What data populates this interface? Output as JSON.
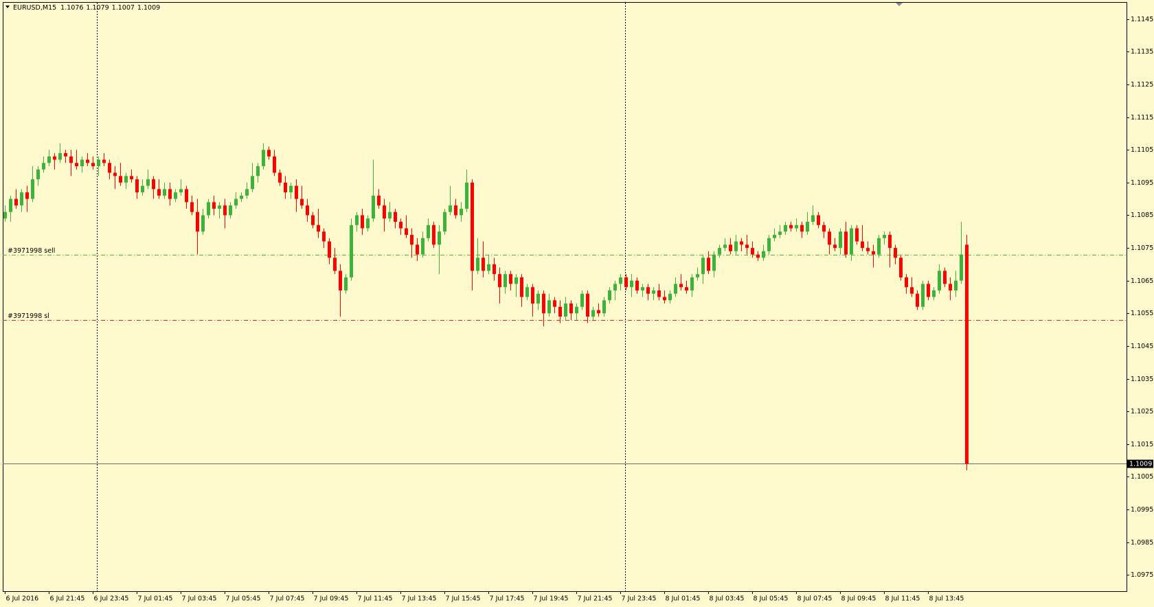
{
  "chart_data": {
    "type": "candlestick",
    "title": "EURUSD,M15",
    "up_color": "#3cb43c",
    "down_color": "#ff0000",
    "ylim": [
      1.097,
      1.115
    ],
    "yticks": [
      1.0975,
      1.0985,
      1.0995,
      1.1005,
      1.1015,
      1.1025,
      1.1035,
      1.1045,
      1.1055,
      1.1065,
      1.1075,
      1.1085,
      1.1095,
      1.1105,
      1.1115,
      1.1125,
      1.1135,
      1.1145
    ],
    "order_lines": [
      {
        "label": "#3971998 sell",
        "value": 1.1073,
        "color": "#32c832"
      },
      {
        "label": "#3971998 sl",
        "value": 1.1053,
        "color": "#e02828"
      }
    ],
    "categories": [
      "6 Jul 2016",
      null,
      null,
      null,
      null,
      null,
      null,
      null,
      "6 Jul 21:45",
      null,
      null,
      null,
      null,
      null,
      null,
      null,
      "6 Jul 23:45",
      null,
      null,
      null,
      null,
      null,
      null,
      null,
      "7 Jul 01:45",
      null,
      null,
      null,
      null,
      null,
      null,
      null,
      "7 Jul 03:45",
      null,
      null,
      null,
      null,
      null,
      null,
      null,
      "7 Jul 05:45",
      null,
      null,
      null,
      null,
      null,
      null,
      null,
      "7 Jul 07:45",
      null,
      null,
      null,
      null,
      null,
      null,
      null,
      "7 Jul 09:45",
      null,
      null,
      null,
      null,
      null,
      null,
      null,
      "7 Jul 11:45",
      null,
      null,
      null,
      null,
      null,
      null,
      null,
      "7 Jul 13:45",
      null,
      null,
      null,
      null,
      null,
      null,
      null,
      "7 Jul 15:45",
      null,
      null,
      null,
      null,
      null,
      null,
      null,
      "7 Jul 17:45",
      null,
      null,
      null,
      null,
      null,
      null,
      null,
      "7 Jul 19:45",
      null,
      null,
      null,
      null,
      null,
      null,
      null,
      "7 Jul 21:45",
      null,
      null,
      null,
      null,
      null,
      null,
      null,
      "7 Jul 23:45",
      null,
      null,
      null,
      null,
      null,
      null,
      null,
      "8 Jul 01:45",
      null,
      null,
      null,
      null,
      null,
      null,
      null,
      "8 Jul 03:45",
      null,
      null,
      null,
      null,
      null,
      null,
      null,
      "8 Jul 05:45",
      null,
      null,
      null,
      null,
      null,
      null,
      null,
      "8 Jul 07:45",
      null,
      null,
      null,
      null,
      null,
      null,
      null,
      "8 Jul 09:45",
      null,
      null,
      null,
      null,
      null,
      null,
      null,
      "8 Jul 11:45",
      null,
      null,
      null,
      null,
      null,
      null,
      null,
      "8 Jul 13:45",
      null,
      null,
      null,
      null,
      null,
      null,
      null
    ],
    "open": [
      1.1084,
      1.1086,
      1.109,
      1.1088,
      1.1092,
      1.109,
      1.1096,
      1.1099,
      1.1101,
      1.1103,
      1.1102,
      1.1104,
      1.1103,
      1.1101,
      1.11,
      1.1102,
      1.1101,
      1.11,
      1.1102,
      1.1101,
      1.1098,
      1.1097,
      1.1095,
      1.1097,
      1.1096,
      1.1092,
      1.1094,
      1.1096,
      1.1093,
      1.1091,
      1.1093,
      1.109,
      1.1092,
      1.1093,
      1.1089,
      1.1086,
      1.108,
      1.1085,
      1.1089,
      1.1087,
      1.1088,
      1.1085,
      1.1088,
      1.109,
      1.1091,
      1.1093,
      1.1097,
      1.11,
      1.1105,
      1.1103,
      1.1098,
      1.1095,
      1.1092,
      1.1094,
      1.109,
      1.1088,
      1.1085,
      1.1082,
      1.108,
      1.1077,
      1.1072,
      1.1068,
      1.1062,
      1.1066,
      1.1082,
      1.1085,
      1.1081,
      1.1084,
      1.1091,
      1.1088,
      1.1084,
      1.1086,
      1.1083,
      1.1081,
      1.1079,
      1.1076,
      1.1073,
      1.1078,
      1.1082,
      1.1076,
      1.108,
      1.1086,
      1.1088,
      1.1085,
      1.1087,
      1.1095,
      1.1068,
      1.1072,
      1.1068,
      1.107,
      1.1067,
      1.1063,
      1.1067,
      1.1064,
      1.1066,
      1.106,
      1.1063,
      1.1058,
      1.1061,
      1.1055,
      1.1059,
      1.1057,
      1.1054,
      1.1058,
      1.1055,
      1.1057,
      1.1061,
      1.1054,
      1.1056,
      1.1055,
      1.1059,
      1.1062,
      1.1064,
      1.1066,
      1.1063,
      1.1065,
      1.1062,
      1.1063,
      1.1061,
      1.1062,
      1.106,
      1.1059,
      1.1061,
      1.1064,
      1.1063,
      1.1062,
      1.1066,
      1.1067,
      1.1072,
      1.1068,
      1.1073,
      1.1075,
      1.1076,
      1.1074,
      1.1077,
      1.1076,
      1.1075,
      1.1073,
      1.1072,
      1.1074,
      1.1078,
      1.1079,
      1.108,
      1.1082,
      1.1081,
      1.1082,
      1.108,
      1.1083,
      1.1085,
      1.1082,
      1.108,
      1.1076,
      1.1075,
      1.108,
      1.1073,
      1.1081,
      1.1077,
      1.1075,
      1.1074,
      1.1073,
      1.1078,
      1.1079,
      1.1075,
      1.1072,
      1.1066,
      1.1063,
      1.1061,
      1.1057,
      1.1064,
      1.106,
      1.1062,
      1.1068,
      1.1064,
      1.1062,
      1.1065,
      1.1076
    ],
    "high": [
      1.1088,
      1.1091,
      1.1093,
      1.1093,
      1.1094,
      1.11,
      1.11,
      1.1103,
      1.1105,
      1.1104,
      1.1107,
      1.1105,
      1.1105,
      1.1105,
      1.1103,
      1.1104,
      1.1103,
      1.1103,
      1.1104,
      1.1102,
      1.11,
      1.1101,
      1.1098,
      1.1099,
      1.1097,
      1.1096,
      1.1099,
      1.1097,
      1.1096,
      1.1095,
      1.1095,
      1.1093,
      1.1096,
      1.1094,
      1.1091,
      1.109,
      1.1087,
      1.109,
      1.1091,
      1.1089,
      1.109,
      1.1089,
      1.1092,
      1.1092,
      1.1095,
      1.1101,
      1.1101,
      1.1107,
      1.1106,
      1.1105,
      1.1099,
      1.1097,
      1.1095,
      1.1096,
      1.1094,
      1.109,
      1.1086,
      1.1087,
      1.1081,
      1.1078,
      1.1075,
      1.107,
      1.1067,
      1.1084,
      1.1086,
      1.1087,
      1.1085,
      1.1102,
      1.1093,
      1.109,
      1.1089,
      1.1087,
      1.1084,
      1.1085,
      1.1081,
      1.1078,
      1.108,
      1.1084,
      1.1083,
      1.1082,
      1.1087,
      1.1094,
      1.109,
      1.1089,
      1.1099,
      1.1096,
      1.1078,
      1.1077,
      1.1073,
      1.1072,
      1.1069,
      1.1068,
      1.1068,
      1.1067,
      1.1067,
      1.1064,
      1.1064,
      1.1062,
      1.1062,
      1.1061,
      1.106,
      1.1059,
      1.106,
      1.1059,
      1.1058,
      1.1062,
      1.1062,
      1.1057,
      1.1058,
      1.106,
      1.1063,
      1.1065,
      1.1067,
      1.1067,
      1.1067,
      1.1066,
      1.1064,
      1.1064,
      1.1063,
      1.1064,
      1.1062,
      1.1062,
      1.1066,
      1.1067,
      1.1065,
      1.1067,
      1.1069,
      1.1073,
      1.1074,
      1.1074,
      1.1076,
      1.1078,
      1.1078,
      1.1079,
      1.1078,
      1.1079,
      1.1077,
      1.1074,
      1.1076,
      1.1079,
      1.1081,
      1.1082,
      1.1083,
      1.1083,
      1.1084,
      1.1083,
      1.1086,
      1.1088,
      1.1086,
      1.1083,
      1.1081,
      1.1078,
      1.1081,
      1.1083,
      1.1082,
      1.1082,
      1.1082,
      1.1077,
      1.1076,
      1.1079,
      1.108,
      1.108,
      1.1076,
      1.1073,
      1.1067,
      1.1066,
      1.1062,
      1.1065,
      1.1065,
      1.1063,
      1.107,
      1.1069,
      1.1066,
      1.1068,
      1.1083,
      1.1079
    ],
    "low": [
      1.1083,
      1.1083,
      1.1087,
      1.1086,
      1.1086,
      1.1089,
      1.1094,
      1.1098,
      1.11,
      1.1099,
      1.1101,
      1.1101,
      1.1097,
      1.1099,
      1.1098,
      1.11,
      1.1099,
      1.1097,
      1.11,
      1.1096,
      1.1093,
      1.1094,
      1.1093,
      1.1095,
      1.109,
      1.1091,
      1.1093,
      1.109,
      1.109,
      1.109,
      1.1088,
      1.1089,
      1.1091,
      1.1087,
      1.1085,
      1.1073,
      1.1079,
      1.1084,
      1.1085,
      1.1084,
      1.1081,
      1.1084,
      1.1087,
      1.1089,
      1.109,
      1.1092,
      1.1095,
      1.1099,
      1.1102,
      1.1097,
      1.1094,
      1.109,
      1.109,
      1.1086,
      1.1087,
      1.1083,
      1.1081,
      1.1078,
      1.1075,
      1.107,
      1.1067,
      1.1054,
      1.1061,
      1.1065,
      1.108,
      1.1079,
      1.108,
      1.1083,
      1.1087,
      1.108,
      1.1083,
      1.1081,
      1.1079,
      1.1078,
      1.1072,
      1.1071,
      1.1072,
      1.1077,
      1.1075,
      1.1067,
      1.1079,
      1.1085,
      1.1084,
      1.1083,
      1.1086,
      1.1062,
      1.1067,
      1.1066,
      1.1067,
      1.1065,
      1.1058,
      1.1061,
      1.1062,
      1.106,
      1.1057,
      1.1059,
      1.1054,
      1.1056,
      1.1051,
      1.1054,
      1.1055,
      1.1052,
      1.1053,
      1.1053,
      1.1053,
      1.1056,
      1.1052,
      1.1053,
      1.1054,
      1.1054,
      1.1058,
      1.1059,
      1.1062,
      1.1062,
      1.106,
      1.1061,
      1.106,
      1.1059,
      1.1059,
      1.1059,
      1.1058,
      1.1058,
      1.106,
      1.1062,
      1.1061,
      1.106,
      1.1065,
      1.1064,
      1.1067,
      1.1066,
      1.1072,
      1.1074,
      1.1073,
      1.1073,
      1.1074,
      1.1073,
      1.1072,
      1.1071,
      1.1071,
      1.1073,
      1.1077,
      1.1078,
      1.1079,
      1.108,
      1.108,
      1.1078,
      1.1079,
      1.1082,
      1.1081,
      1.1078,
      1.1073,
      1.1074,
      1.1073,
      1.1072,
      1.1071,
      1.1076,
      1.1074,
      1.1073,
      1.1069,
      1.1072,
      1.1076,
      1.1069,
      1.107,
      1.1065,
      1.1061,
      1.106,
      1.1056,
      1.1056,
      1.1059,
      1.1059,
      1.1061,
      1.1063,
      1.1059,
      1.106,
      1.1064,
      1.1007
    ],
    "close": [
      1.1086,
      1.109,
      1.1088,
      1.1092,
      1.109,
      1.1096,
      1.1099,
      1.1101,
      1.1103,
      1.1102,
      1.1104,
      1.1103,
      1.1101,
      1.11,
      1.1102,
      1.1101,
      1.11,
      1.1102,
      1.1101,
      1.1098,
      1.1097,
      1.1095,
      1.1097,
      1.1096,
      1.1092,
      1.1094,
      1.1096,
      1.1093,
      1.1091,
      1.1093,
      1.109,
      1.1092,
      1.1093,
      1.1089,
      1.1086,
      1.108,
      1.1085,
      1.1089,
      1.1087,
      1.1088,
      1.1085,
      1.1088,
      1.109,
      1.1091,
      1.1093,
      1.1097,
      1.11,
      1.1105,
      1.1103,
      1.1098,
      1.1095,
      1.1092,
      1.1094,
      1.109,
      1.1088,
      1.1085,
      1.1082,
      1.108,
      1.1077,
      1.1072,
      1.1068,
      1.1062,
      1.1066,
      1.1082,
      1.1085,
      1.1081,
      1.1084,
      1.1091,
      1.1088,
      1.1084,
      1.1086,
      1.1083,
      1.1081,
      1.1079,
      1.1076,
      1.1073,
      1.1078,
      1.1082,
      1.1076,
      1.108,
      1.1086,
      1.1088,
      1.1085,
      1.1087,
      1.1095,
      1.1068,
      1.1072,
      1.1068,
      1.107,
      1.1067,
      1.1063,
      1.1067,
      1.1064,
      1.1066,
      1.106,
      1.1063,
      1.1058,
      1.1061,
      1.1055,
      1.1059,
      1.1057,
      1.1054,
      1.1058,
      1.1055,
      1.1057,
      1.1061,
      1.1054,
      1.1056,
      1.1055,
      1.1059,
      1.1062,
      1.1064,
      1.1066,
      1.1063,
      1.1065,
      1.1062,
      1.1063,
      1.1061,
      1.1062,
      1.106,
      1.1059,
      1.1061,
      1.1064,
      1.1063,
      1.1062,
      1.1066,
      1.1067,
      1.1072,
      1.1068,
      1.1073,
      1.1075,
      1.1076,
      1.1074,
      1.1077,
      1.1076,
      1.1075,
      1.1073,
      1.1072,
      1.1074,
      1.1078,
      1.1079,
      1.108,
      1.1082,
      1.1081,
      1.1082,
      1.108,
      1.1083,
      1.1085,
      1.1082,
      1.108,
      1.1076,
      1.1075,
      1.108,
      1.1073,
      1.1081,
      1.1077,
      1.1075,
      1.1074,
      1.1073,
      1.1078,
      1.1079,
      1.1075,
      1.1072,
      1.1066,
      1.1063,
      1.1061,
      1.1057,
      1.1064,
      1.106,
      1.1062,
      1.1068,
      1.1064,
      1.1062,
      1.1065,
      1.1073,
      1.1009
    ]
  }
}
